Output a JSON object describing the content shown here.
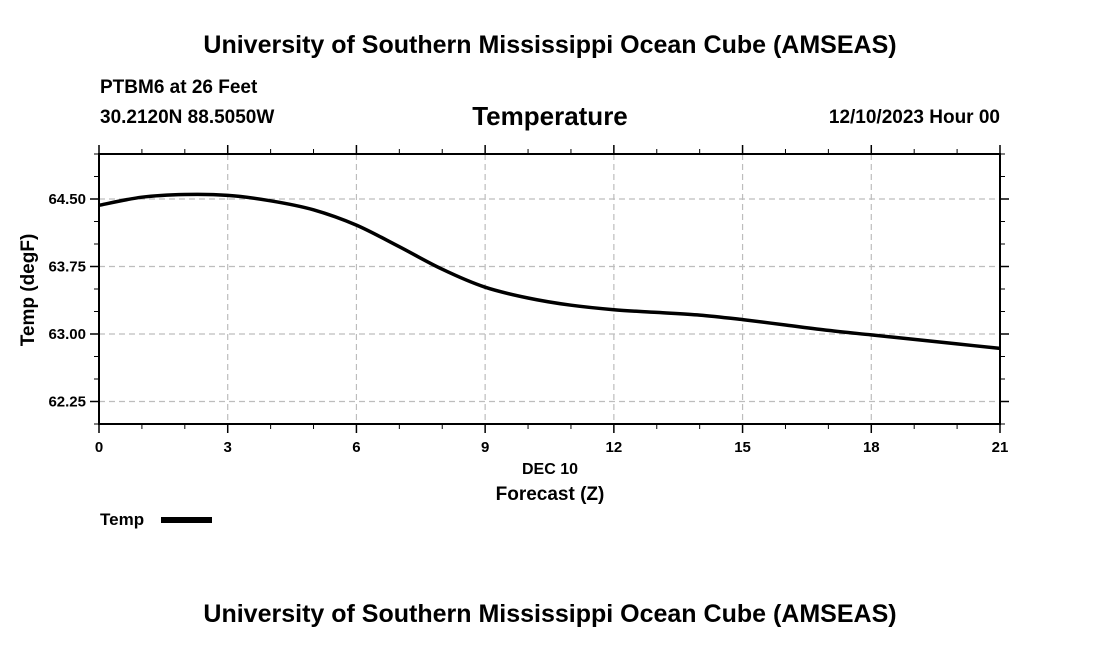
{
  "header": {
    "title_top": "University of Southern Mississippi Ocean Cube (AMSEAS)",
    "station": "PTBM6 at 26 Feet",
    "coords": "30.2120N  88.5050W",
    "chart_title": "Temperature",
    "datetime": "12/10/2023 Hour 00"
  },
  "legend": {
    "label": "Temp",
    "color": "#000000"
  },
  "footer": {
    "title_bottom": "University of Southern Mississippi Ocean Cube (AMSEAS)"
  },
  "chart_data": {
    "type": "line",
    "title": "Temperature",
    "xlabel": "Forecast (Z)",
    "xsublabel": "DEC 10",
    "ylabel": "Temp (degF)",
    "xlim": [
      0,
      21
    ],
    "ylim": [
      62.0,
      65.0
    ],
    "xticks": [
      0,
      3,
      6,
      9,
      12,
      15,
      18,
      21
    ],
    "yticks": [
      62.25,
      63.0,
      63.75,
      64.5
    ],
    "ytick_labels": [
      "62.25",
      "63.00",
      "63.75",
      "64.50"
    ],
    "grid": true,
    "series": [
      {
        "name": "Temp",
        "color": "#000000",
        "x": [
          0,
          1,
          2,
          3,
          4,
          5,
          6,
          7,
          8,
          9,
          10,
          11,
          12,
          13,
          14,
          15,
          16,
          17,
          18,
          19,
          20,
          21
        ],
        "values": [
          64.43,
          64.52,
          64.55,
          64.54,
          64.48,
          64.38,
          64.21,
          63.97,
          63.72,
          63.52,
          63.4,
          63.32,
          63.27,
          63.24,
          63.21,
          63.16,
          63.1,
          63.04,
          62.99,
          62.94,
          62.89,
          62.84
        ]
      }
    ]
  }
}
